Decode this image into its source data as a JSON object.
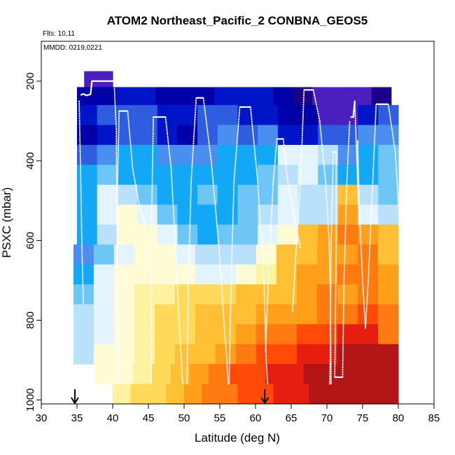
{
  "chart_data": {
    "type": "heatmap",
    "title": "ATOM2 Northeast_Pacific_2 CONBNA_GEOS5",
    "annotations": {
      "flights": "Flts: 10,11",
      "dates": "MMDD: 0219,0221"
    },
    "xlabel": "Latitude (deg N)",
    "ylabel": "PSXC (mbar)",
    "xlim": [
      30,
      85
    ],
    "ylim": [
      1010,
      100
    ],
    "x_ticks": [
      30,
      35,
      40,
      45,
      50,
      55,
      60,
      65,
      70,
      75,
      80,
      85
    ],
    "y_ticks": [
      200,
      400,
      600,
      800,
      1000
    ],
    "arrow_markers_lat": [
      34.7,
      61.3
    ],
    "colors": {
      "c0": "#1b0088",
      "c1": "#4a1fbe",
      "c2": "#0000a8",
      "c3": "#0015c8",
      "c4": "#2e5de0",
      "c5": "#4a8ff0",
      "c6": "#12a8f5",
      "c7": "#6ec6f7",
      "c8": "#b9e1fb",
      "c9": "#e4f4ff",
      "c10": "#fffbd5",
      "c11": "#fff2a0",
      "c12": "#ffd95a",
      "c13": "#ffc035",
      "c14": "#ff9f1a",
      "c15": "#ff7a10",
      "c16": "#ff4a0a",
      "c17": "#e51e10",
      "c18": "#b21515"
    },
    "curtain_rows": [
      {
        "p": [
          175,
          215
        ],
        "segments": [
          {
            "lat": [
              36,
              40
            ],
            "colors": [
              "c1",
              "c1"
            ]
          }
        ]
      },
      {
        "p": [
          215,
          260
        ],
        "segments": [
          {
            "lat": [
              35,
              79
            ],
            "colors": [
              "c2",
              "c2",
              "c3",
              "c3",
              "c2",
              "c2",
              "c2",
              "c3",
              "c3",
              "c3",
              "c2",
              "c0",
              "c1",
              "c1",
              "c1",
              "c0"
            ]
          }
        ]
      },
      {
        "p": [
          260,
          310
        ],
        "segments": [
          {
            "lat": [
              35,
              80
            ],
            "colors": [
              "c3",
              "c4",
              "c4",
              "c4",
              "c3",
              "c3",
              "c4",
              "c4",
              "c3",
              "c3",
              "c2",
              "c2",
              "c1",
              "c1",
              "c3",
              "c4"
            ]
          }
        ]
      },
      {
        "p": [
          310,
          360
        ],
        "segments": [
          {
            "lat": [
              35,
              80
            ],
            "colors": [
              "c2",
              "c3",
              "c4",
              "c4",
              "c3",
              "c2",
              "c4",
              "c5",
              "c4",
              "c5",
              "c3",
              "c3",
              "c4",
              "c4",
              "c5",
              "c5"
            ]
          }
        ]
      },
      {
        "p": [
          360,
          410
        ],
        "segments": [
          {
            "lat": [
              35,
              80
            ],
            "colors": [
              "c4",
              "c5",
              "c6",
              "c6",
              "c5",
              "c5",
              "c5",
              "c6",
              "c6",
              "c6",
              "c9",
              "c9",
              "c8",
              "c5",
              "c6",
              "c7"
            ]
          }
        ]
      },
      {
        "p": [
          410,
          460
        ],
        "segments": [
          {
            "lat": [
              35,
              80
            ],
            "colors": [
              "c6",
              "c7",
              "c6",
              "c6",
              "c6",
              "c6",
              "c6",
              "c6",
              "c6",
              "c7",
              "c8",
              "c9",
              "c7",
              "c6",
              "c6",
              "c7"
            ]
          }
        ]
      },
      {
        "p": [
          460,
          510
        ],
        "segments": [
          {
            "lat": [
              35,
              80
            ],
            "colors": [
              "c6",
              "c9",
              "c8",
              "c7",
              "c6",
              "c6",
              "c7",
              "c6",
              "c7",
              "c7",
              "c9",
              "c8",
              "c8",
              "c13",
              "c8",
              "c7"
            ]
          }
        ]
      },
      {
        "p": [
          510,
          560
        ],
        "segments": [
          {
            "lat": [
              35,
              80
            ],
            "colors": [
              "c6",
              "c9",
              "c10",
              "c9",
              "c7",
              "c6",
              "c6",
              "c6",
              "c7",
              "c8",
              "c9",
              "c8",
              "c8",
              "c14",
              "c9",
              "c8"
            ]
          }
        ]
      },
      {
        "p": [
          560,
          610
        ],
        "segments": [
          {
            "lat": [
              35,
              80
            ],
            "colors": [
              "c6",
              "c8",
              "c10",
              "c10",
              "c9",
              "c7",
              "c6",
              "c7",
              "c7",
              "c9",
              "c10",
              "c13",
              "c14",
              "c15",
              "c14",
              "c13"
            ]
          }
        ]
      },
      {
        "p": [
          610,
          660
        ],
        "segments": [
          {
            "lat": [
              34.5,
              80
            ],
            "colors": [
              "c5",
              "c7",
              "c9",
              "c10",
              "c10",
              "c9",
              "c8",
              "c8",
              "c8",
              "c10",
              "c13",
              "c13",
              "c14",
              "c14",
              "c15",
              "c13"
            ]
          }
        ]
      },
      {
        "p": [
          660,
          710
        ],
        "segments": [
          {
            "lat": [
              34.5,
              80
            ],
            "colors": [
              "c6",
              "c9",
              "c10",
              "c10",
              "c10",
              "c10",
              "c9",
              "c9",
              "c10",
              "c11",
              "c13",
              "c14",
              "c14",
              "c15",
              "c15",
              "c14"
            ]
          }
        ]
      },
      {
        "p": [
          710,
          760
        ],
        "segments": [
          {
            "lat": [
              34.5,
              80
            ],
            "colors": [
              "c7",
              "c9",
              "c10",
              "c11",
              "c11",
              "c12",
              "c12",
              "c12",
              "c13",
              "c13",
              "c13",
              "c14",
              "c15",
              "c14",
              "c15",
              "c14"
            ]
          }
        ]
      },
      {
        "p": [
          760,
          810
        ],
        "segments": [
          {
            "lat": [
              34.5,
              80
            ],
            "colors": [
              "c8",
              "c9",
              "c10",
              "c11",
              "c12",
              "c12",
              "c13",
              "c13",
              "c13",
              "c14",
              "c14",
              "c14",
              "c15",
              "c15",
              "c16",
              "c15"
            ]
          }
        ]
      },
      {
        "p": [
          810,
          860
        ],
        "segments": [
          {
            "lat": [
              34.5,
              80
            ],
            "colors": [
              "c8",
              "c9",
              "c10",
              "c11",
              "c12",
              "c12",
              "c13",
              "c13",
              "c14",
              "c15",
              "c15",
              "c16",
              "c16",
              "c17",
              "c17",
              "c15"
            ]
          }
        ]
      },
      {
        "p": [
          860,
          910
        ],
        "segments": [
          {
            "lat": [
              34.5,
              80
            ],
            "colors": [
              "c8",
              "c10",
              "c10",
              "c11",
              "c12",
              "c13",
              "c13",
              "c14",
              "c15",
              "c16",
              "c16",
              "c17",
              "c17",
              "c18",
              "c18",
              "c18"
            ]
          }
        ]
      },
      {
        "p": [
          910,
          960
        ],
        "segments": [
          {
            "lat": [
              37.5,
              80
            ],
            "colors": [
              "c10",
              "c10",
              "c11",
              "c12",
              "c13",
              "c14",
              "c15",
              "c16",
              "c16",
              "c17",
              "c17",
              "c18",
              "c18",
              "c18",
              "c18",
              "c18"
            ]
          }
        ]
      },
      {
        "p": [
          960,
          1010
        ],
        "segments": [
          {
            "lat": [
              40,
              80
            ],
            "colors": [
              "c11",
              "c12",
              "c12",
              "c13",
              "c14",
              "c15",
              "c15",
              "c16",
              "c16",
              "c17",
              "c17",
              "c18",
              "c18",
              "c18",
              "c18",
              "c18"
            ]
          }
        ]
      }
    ],
    "flight_track": {
      "solid_segments": [
        [
          [
            35.5,
            235
          ],
          [
            35.9,
            232
          ],
          [
            36.3,
            236
          ],
          [
            36.9,
            233
          ]
        ],
        [
          [
            36.9,
            233
          ],
          [
            37.1,
            200
          ],
          [
            40.2,
            200
          ]
        ],
        [
          [
            40.9,
            275
          ],
          [
            42.1,
            275
          ]
        ],
        [
          [
            45.7,
            290
          ],
          [
            47.4,
            290
          ]
        ],
        [
          [
            51.7,
            242
          ],
          [
            52.7,
            242
          ]
        ],
        [
          [
            57.8,
            265
          ],
          [
            59.3,
            265
          ]
        ],
        [
          [
            63.0,
            345
          ],
          [
            63.9,
            345
          ]
        ],
        [
          [
            66.8,
            222
          ],
          [
            68.1,
            222
          ]
        ],
        [
          [
            70.9,
            378
          ],
          [
            71.3,
            378
          ]
        ],
        [
          [
            71.1,
            943
          ],
          [
            72.2,
            943
          ]
        ],
        [
          [
            73.3,
            290
          ],
          [
            73.7,
            290
          ],
          [
            73.9,
            250
          ]
        ],
        [
          [
            76.9,
            258
          ],
          [
            78.6,
            258
          ]
        ]
      ],
      "dotted_segments": [
        [
          [
            35.3,
            250
          ],
          [
            35.5,
            420
          ],
          [
            35.7,
            620
          ],
          [
            35.9,
            760
          ]
        ],
        [
          [
            40.2,
            200
          ],
          [
            40.5,
            320
          ],
          [
            40.7,
            700
          ],
          [
            40.9,
            900
          ],
          [
            41.0,
            960
          ]
        ],
        [
          [
            40.9,
            275
          ],
          [
            40.7,
            450
          ],
          [
            40.6,
            700
          ],
          [
            40.6,
            960
          ]
        ],
        [
          [
            42.1,
            275
          ],
          [
            42.8,
            420
          ],
          [
            43.8,
            520
          ],
          [
            44.6,
            560
          ]
        ],
        [
          [
            45.7,
            290
          ],
          [
            45.5,
            500
          ],
          [
            45.4,
            800
          ],
          [
            45.4,
            960
          ]
        ],
        [
          [
            47.4,
            290
          ],
          [
            48.2,
            420
          ],
          [
            48.8,
            620
          ],
          [
            49.3,
            800
          ],
          [
            49.8,
            960
          ]
        ],
        [
          [
            51.7,
            242
          ],
          [
            51.0,
            450
          ],
          [
            50.6,
            700
          ],
          [
            50.4,
            960
          ]
        ],
        [
          [
            52.7,
            242
          ],
          [
            53.8,
            400
          ],
          [
            54.9,
            620
          ],
          [
            55.6,
            810
          ]
        ],
        [
          [
            55.6,
            810
          ],
          [
            56.0,
            900
          ],
          [
            56.2,
            960
          ]
        ],
        [
          [
            57.8,
            265
          ],
          [
            57.0,
            450
          ],
          [
            56.6,
            700
          ],
          [
            56.3,
            960
          ]
        ],
        [
          [
            59.3,
            265
          ],
          [
            60.3,
            450
          ],
          [
            60.9,
            620
          ],
          [
            61.2,
            700
          ]
        ],
        [
          [
            61.2,
            700
          ],
          [
            61.5,
            900
          ],
          [
            61.7,
            960
          ]
        ],
        [
          [
            63.0,
            345
          ],
          [
            62.5,
            450
          ],
          [
            61.9,
            650
          ],
          [
            61.4,
            880
          ]
        ],
        [
          [
            63.9,
            345
          ],
          [
            64.5,
            450
          ],
          [
            65.5,
            550
          ],
          [
            66.3,
            620
          ]
        ],
        [
          [
            66.8,
            222
          ],
          [
            66.3,
            450
          ],
          [
            65.6,
            650
          ],
          [
            65.2,
            780
          ]
        ],
        [
          [
            68.1,
            222
          ],
          [
            69.0,
            300
          ],
          [
            69.8,
            450
          ],
          [
            70.3,
            600
          ],
          [
            70.5,
            750
          ]
        ],
        [
          [
            70.5,
            750
          ],
          [
            70.5,
            850
          ],
          [
            70.4,
            960
          ]
        ],
        [
          [
            70.9,
            378
          ],
          [
            70.6,
            600
          ],
          [
            70.5,
            800
          ],
          [
            70.6,
            960
          ]
        ],
        [
          [
            71.3,
            378
          ],
          [
            71.3,
            600
          ],
          [
            71.2,
            800
          ],
          [
            71.1,
            943
          ]
        ],
        [
          [
            72.2,
            943
          ],
          [
            72.4,
            700
          ],
          [
            72.8,
            450
          ],
          [
            73.2,
            300
          ]
        ],
        [
          [
            73.9,
            250
          ],
          [
            74.2,
            400
          ],
          [
            74.4,
            500
          ],
          [
            74.5,
            560
          ]
        ],
        [
          [
            74.5,
            560
          ],
          [
            74.4,
            450
          ],
          [
            74.3,
            350
          ]
        ],
        [
          [
            74.3,
            350
          ],
          [
            74.5,
            500
          ],
          [
            75.0,
            700
          ],
          [
            75.4,
            820
          ]
        ],
        [
          [
            76.9,
            258
          ],
          [
            76.3,
            500
          ],
          [
            75.8,
            700
          ],
          [
            75.4,
            820
          ]
        ],
        [
          [
            78.6,
            258
          ],
          [
            79.6,
            380
          ],
          [
            80.2,
            560
          ],
          [
            80.3,
            960
          ]
        ]
      ]
    }
  }
}
